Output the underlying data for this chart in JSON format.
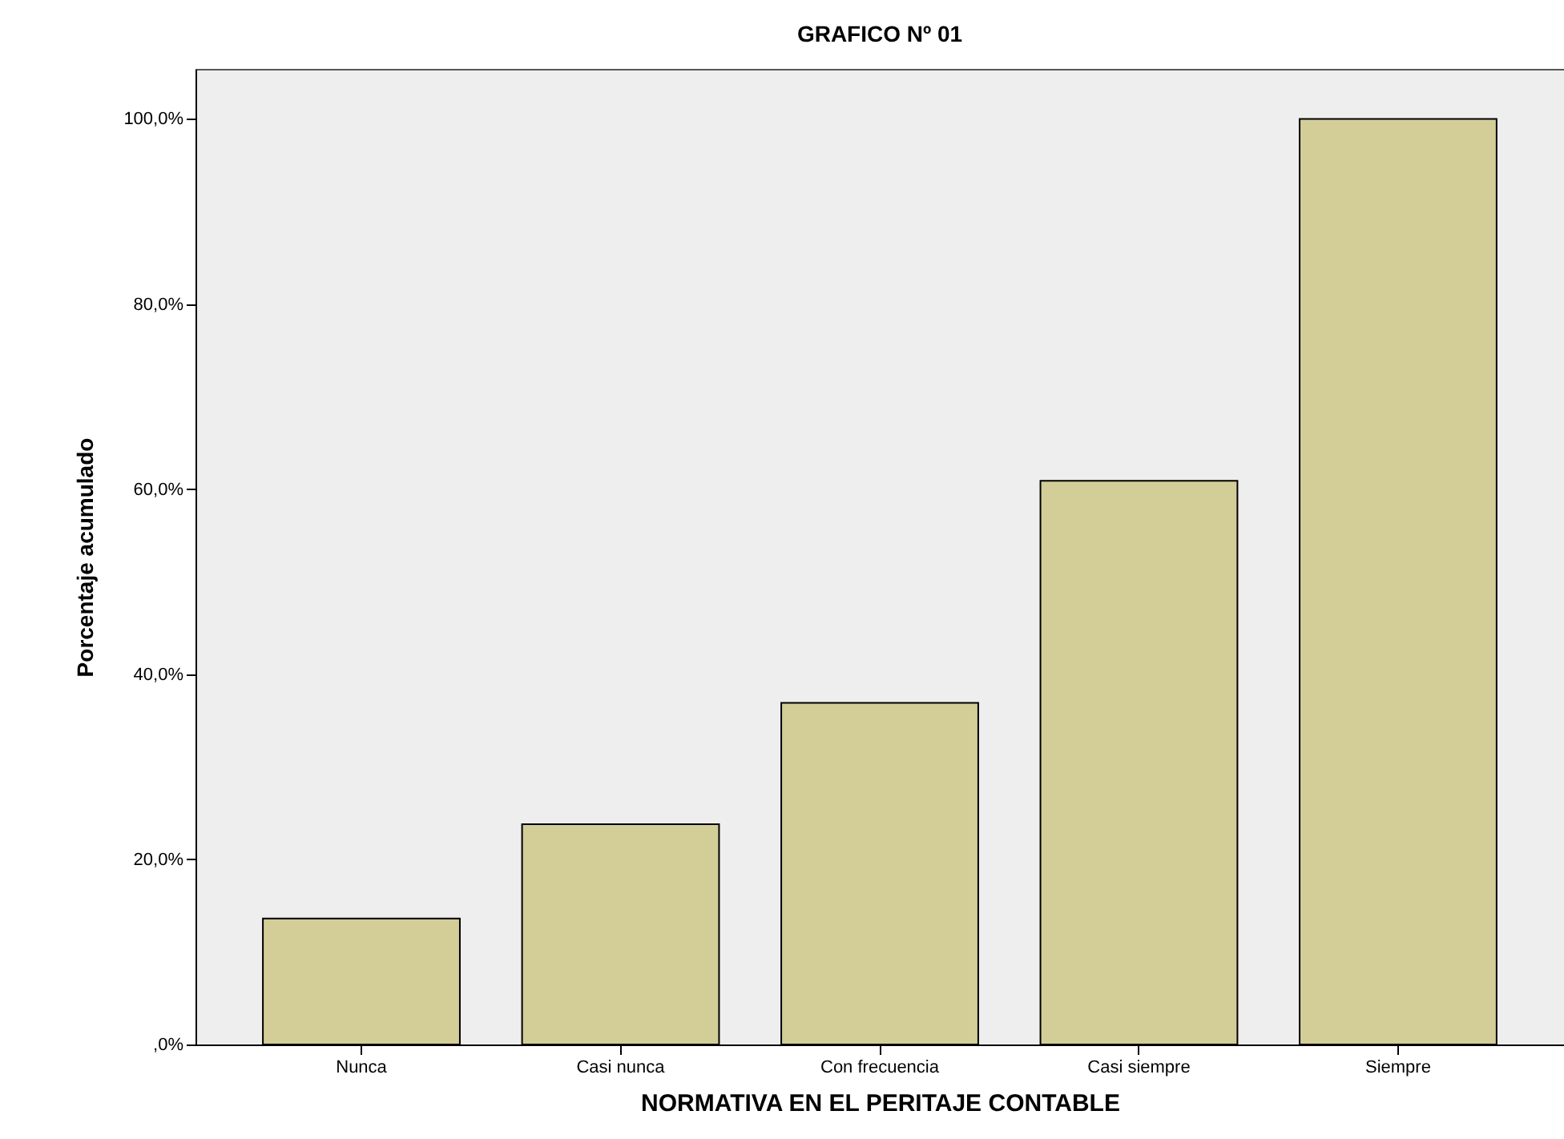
{
  "chart_data": {
    "type": "bar",
    "title": "GRAFICO Nº 01",
    "xlabel": "NORMATIVA EN EL PERITAJE CONTABLE",
    "ylabel": "Porcentaje acumulado",
    "categories": [
      "Nunca",
      "Casi nunca",
      "Con frecuencia",
      "Casi siempre",
      "Siempre"
    ],
    "values": [
      13.6,
      23.8,
      36.9,
      60.9,
      100
    ],
    "color": "#d3cd98",
    "ylim": [
      0,
      105.4
    ],
    "yticks": [
      {
        "value": 0,
        "label": ",0%"
      },
      {
        "value": 20,
        "label": "20,0%"
      },
      {
        "value": 40,
        "label": "40,0%"
      },
      {
        "value": 60,
        "label": "60,0%"
      },
      {
        "value": 80,
        "label": "80,0%"
      },
      {
        "value": 100,
        "label": "100,0%"
      }
    ],
    "grid": false,
    "legend": false
  }
}
